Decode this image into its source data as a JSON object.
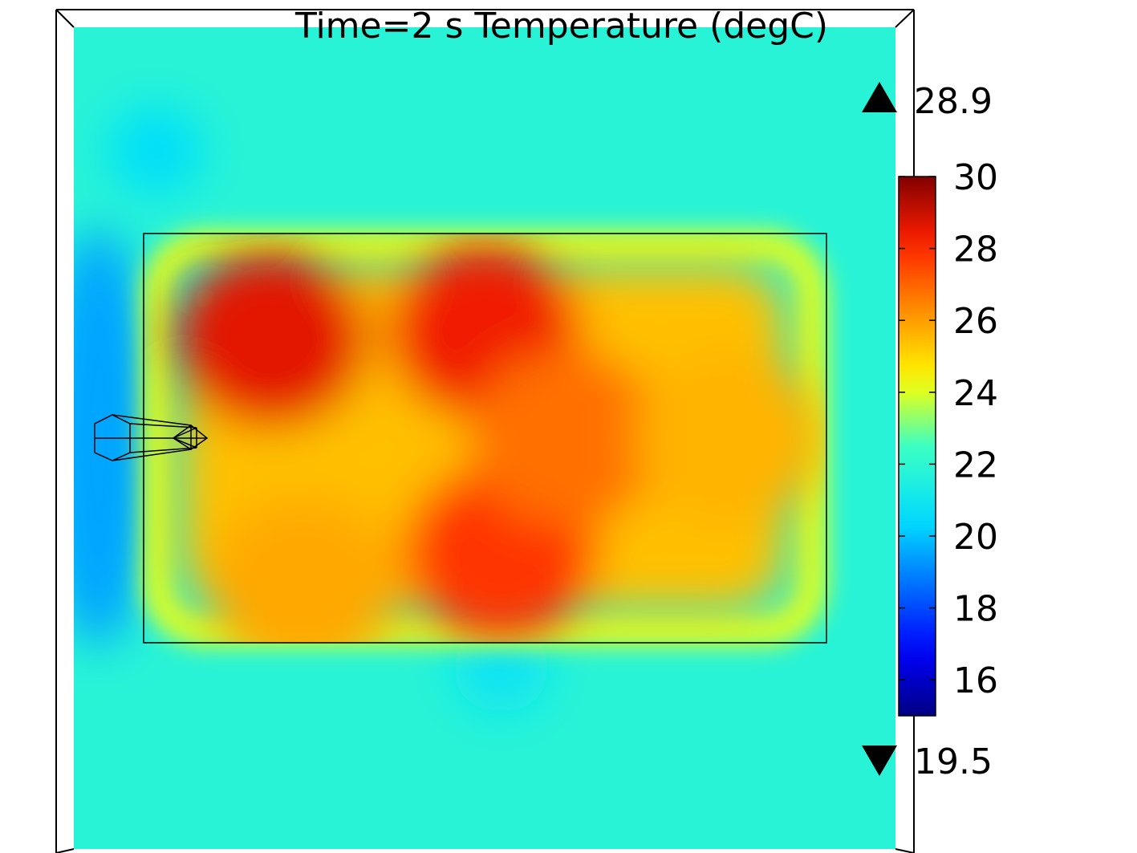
{
  "chart_data": {
    "type": "heatmap",
    "title": "Time=2 s   Temperature (degC)",
    "time_label": "Time=2 s",
    "quantity_label": "Temperature (degC)",
    "colorbar": {
      "min": 15,
      "max": 30,
      "ticks": [
        "30",
        "28",
        "26",
        "24",
        "22",
        "20",
        "18",
        "16"
      ],
      "tick_values": [
        30,
        28,
        26,
        24,
        22,
        20,
        18,
        16
      ],
      "colormap": "rainbow"
    },
    "data_range": {
      "max_label": "28.9",
      "min_label": "19.5",
      "max": 28.9,
      "min": 19.5
    },
    "ambient_value": 21.8,
    "hot_spots": [
      {
        "x": 0.24,
        "y": 0.38,
        "value": 28.6
      },
      {
        "x": 0.5,
        "y": 0.37,
        "value": 28.4
      },
      {
        "x": 0.52,
        "y": 0.64,
        "value": 27.8
      },
      {
        "x": 0.6,
        "y": 0.5,
        "value": 26.8
      },
      {
        "x": 0.8,
        "y": 0.5,
        "value": 25.6
      },
      {
        "x": 0.28,
        "y": 0.68,
        "value": 25.8
      }
    ],
    "cold_spots": [
      {
        "x": 0.03,
        "y": 0.5,
        "value": 19.5
      },
      {
        "x": 0.52,
        "y": 0.78,
        "value": 20.8
      },
      {
        "x": 0.1,
        "y": 0.15,
        "value": 20.6
      }
    ]
  }
}
